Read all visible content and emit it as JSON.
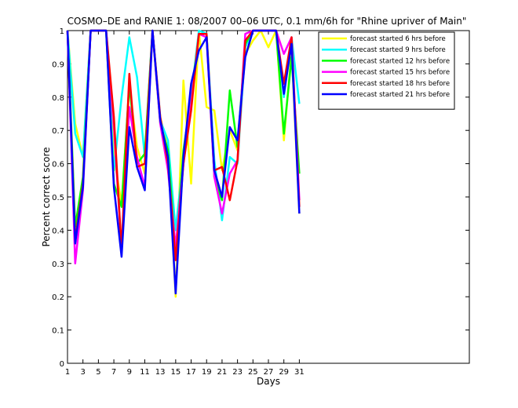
{
  "chart_data": {
    "type": "line",
    "title": "COSMO–DE and RANIE 1: 08/2007 00–06 UTC, 0.1 mm/6h for \"Rhine upriver of Main\"",
    "xlabel": "Days",
    "ylabel": "Percent correct score",
    "xlim": [
      1,
      53
    ],
    "ylim": [
      0,
      1
    ],
    "xticks": [
      1,
      3,
      5,
      7,
      9,
      11,
      13,
      15,
      17,
      19,
      21,
      23,
      25,
      27,
      29,
      31
    ],
    "yticks": [
      0,
      0.1,
      0.2,
      0.3,
      0.4,
      0.5,
      0.6,
      0.7,
      0.8,
      0.9,
      1
    ],
    "legend_position": "top-right",
    "x": [
      1,
      2,
      3,
      4,
      5,
      6,
      7,
      8,
      9,
      10,
      11,
      12,
      13,
      14,
      15,
      16,
      17,
      18,
      19,
      20,
      21,
      22,
      23,
      24,
      25,
      26,
      27,
      28,
      29,
      30,
      31
    ],
    "series": [
      {
        "name": "forecast started 6 hrs before",
        "color": "#ffff00",
        "values": [
          1,
          0.72,
          0.62,
          1,
          1,
          1,
          0.62,
          0.48,
          0.83,
          0.65,
          0.57,
          1,
          0.74,
          0.64,
          0.2,
          0.85,
          0.54,
          1,
          0.77,
          0.76,
          0.58,
          0.7,
          0.64,
          0.93,
          0.97,
          1,
          0.95,
          1,
          0.67,
          0.94,
          0.45
        ]
      },
      {
        "name": "forecast started 9 hrs before",
        "color": "#00ffff",
        "values": [
          1,
          0.69,
          0.62,
          1,
          1,
          1,
          0.58,
          0.8,
          0.98,
          0.86,
          0.62,
          1,
          0.73,
          0.67,
          0.4,
          0.62,
          0.8,
          1,
          0.99,
          0.61,
          0.43,
          0.62,
          0.6,
          0.95,
          1,
          1,
          1,
          1,
          0.8,
          0.98,
          0.78
        ]
      },
      {
        "name": "forecast started 12 hrs before",
        "color": "#00ff00",
        "values": [
          1,
          0.41,
          0.56,
          1,
          1,
          1,
          0.54,
          0.47,
          0.84,
          0.6,
          0.63,
          1,
          0.72,
          0.64,
          0.33,
          0.64,
          0.8,
          0.99,
          0.99,
          0.56,
          0.49,
          0.82,
          0.65,
          0.96,
          1,
          1,
          1,
          1,
          0.69,
          0.92,
          0.57
        ]
      },
      {
        "name": "forecast started 15 hrs before",
        "color": "#ff00ff",
        "values": [
          1,
          0.3,
          0.52,
          1,
          1,
          1,
          0.71,
          0.34,
          0.77,
          0.62,
          0.53,
          1,
          0.72,
          0.58,
          0.35,
          0.6,
          0.78,
          0.99,
          0.98,
          0.56,
          0.45,
          0.57,
          0.61,
          0.99,
          1,
          1,
          1,
          1,
          0.93,
          0.98,
          0.49
        ]
      },
      {
        "name": "forecast started 18 hrs before",
        "color": "#ff0000",
        "values": [
          1,
          0.37,
          0.54,
          1,
          1,
          1,
          0.74,
          0.34,
          0.87,
          0.59,
          0.6,
          1,
          0.74,
          0.6,
          0.31,
          0.6,
          0.76,
          0.99,
          0.99,
          0.58,
          0.59,
          0.49,
          0.61,
          0.97,
          1,
          1,
          1,
          1,
          0.84,
          0.98,
          0.47
        ]
      },
      {
        "name": "forecast started 21 hrs before",
        "color": "#0000ff",
        "values": [
          1,
          0.36,
          0.53,
          1,
          1,
          1,
          0.53,
          0.32,
          0.71,
          0.59,
          0.52,
          1,
          0.73,
          0.62,
          0.21,
          0.62,
          0.84,
          0.94,
          0.98,
          0.58,
          0.5,
          0.71,
          0.67,
          0.92,
          1,
          1,
          1,
          1,
          0.81,
          0.96,
          0.45
        ]
      }
    ]
  }
}
